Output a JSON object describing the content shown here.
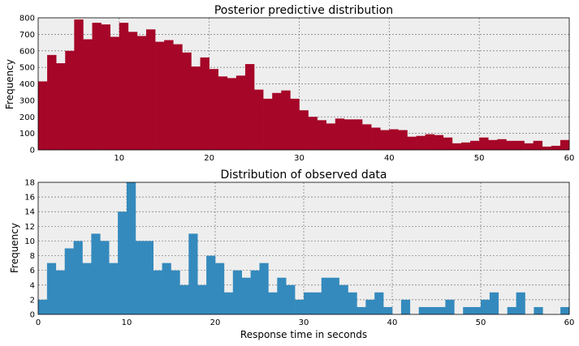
{
  "chart_data": [
    {
      "type": "bar",
      "title": "Posterior predictive distribution",
      "xlabel": "",
      "ylabel": "Frequency",
      "xlim": [
        1,
        60
      ],
      "ylim": [
        0,
        800
      ],
      "xticks": [
        "10",
        "20",
        "30",
        "40",
        "50",
        "60"
      ],
      "yticks": [
        "0",
        "100",
        "200",
        "300",
        "400",
        "500",
        "600",
        "700",
        "800"
      ],
      "grid": true,
      "color": "#A60628",
      "bin_start": 1,
      "bin_end": 60,
      "values": [
        415,
        575,
        525,
        600,
        790,
        670,
        770,
        760,
        685,
        770,
        715,
        690,
        730,
        655,
        665,
        640,
        590,
        505,
        560,
        490,
        445,
        435,
        450,
        520,
        365,
        310,
        345,
        360,
        310,
        240,
        200,
        180,
        160,
        190,
        185,
        185,
        155,
        135,
        120,
        125,
        120,
        80,
        85,
        95,
        90,
        75,
        40,
        45,
        55,
        75,
        60,
        65,
        55,
        55,
        40,
        55,
        20,
        25,
        60
      ]
    },
    {
      "type": "bar",
      "title": "Distribution of observed data",
      "xlabel": "Response time in seconds",
      "ylabel": "Frequency",
      "xlim": [
        0,
        60
      ],
      "ylim": [
        0,
        18
      ],
      "xticks": [
        "0",
        "10",
        "20",
        "30",
        "40",
        "50",
        "60"
      ],
      "yticks": [
        "0",
        "2",
        "4",
        "6",
        "8",
        "10",
        "12",
        "14",
        "16",
        "18"
      ],
      "grid": true,
      "color": "#348ABD",
      "bin_start": 0,
      "bin_end": 60,
      "values": [
        2,
        7,
        6,
        9,
        10,
        7,
        11,
        10,
        7,
        14,
        18,
        10,
        10,
        6,
        7,
        6,
        4,
        11,
        4,
        8,
        7,
        3,
        6,
        5,
        6,
        7,
        3,
        5,
        4,
        2,
        3,
        3,
        5,
        5,
        4,
        3,
        1,
        2,
        3,
        1,
        0,
        2,
        0,
        1,
        1,
        1,
        2,
        0,
        1,
        1,
        2,
        3,
        0,
        1,
        3,
        0,
        1,
        0,
        0,
        1
      ]
    }
  ]
}
